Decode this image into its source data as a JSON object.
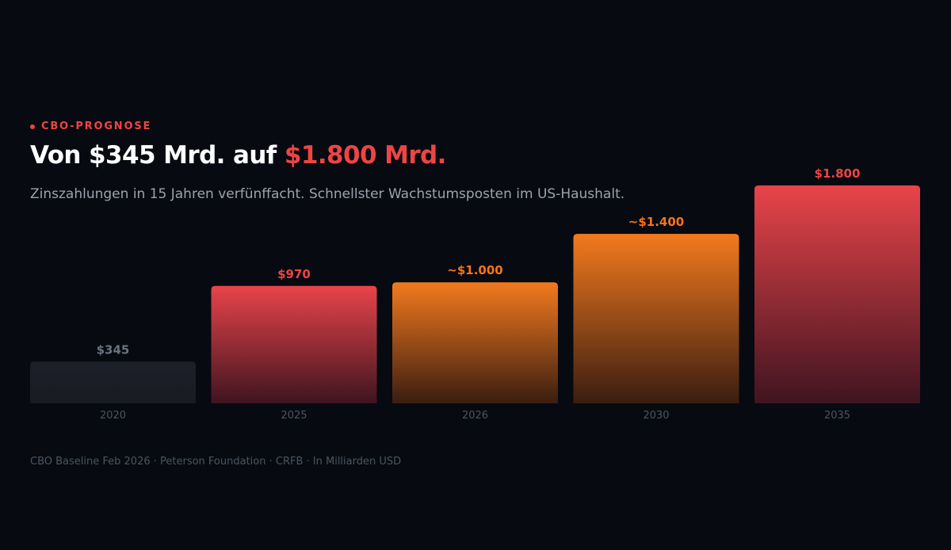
{
  "header": {
    "kicker": "CBO-PROGNOSE",
    "title_part1": "Von $345 Mrd. auf ",
    "title_accent": "$1.800 Mrd.",
    "subtitle": "Zinszahlungen in 15 Jahren verfünffacht. Schnellster Wachstumsposten im US-Haushalt."
  },
  "footer": {
    "source": "CBO Baseline Feb 2026 · Peterson Foundation · CRFB · In Milliarden USD"
  },
  "colors": {
    "accent": "#ef4444",
    "orange": "#f97316",
    "muted": "#1c1f27",
    "muted_label": "#6b7280"
  },
  "chart_data": {
    "type": "bar",
    "title": "Von $345 Mrd. auf $1.800 Mrd.",
    "ylabel": "In Milliarden USD",
    "categories": [
      "2020",
      "2025",
      "2026",
      "2030",
      "2035"
    ],
    "values": [
      345,
      970,
      1000,
      1400,
      1800
    ],
    "data_labels": [
      "$345",
      "$970",
      "~$1.000",
      "~$1.400",
      "$1.800"
    ],
    "styles": [
      "muted",
      "red",
      "orange",
      "orange",
      "red"
    ],
    "ylim": [
      0,
      1800
    ],
    "grid": false,
    "legend": "none"
  }
}
